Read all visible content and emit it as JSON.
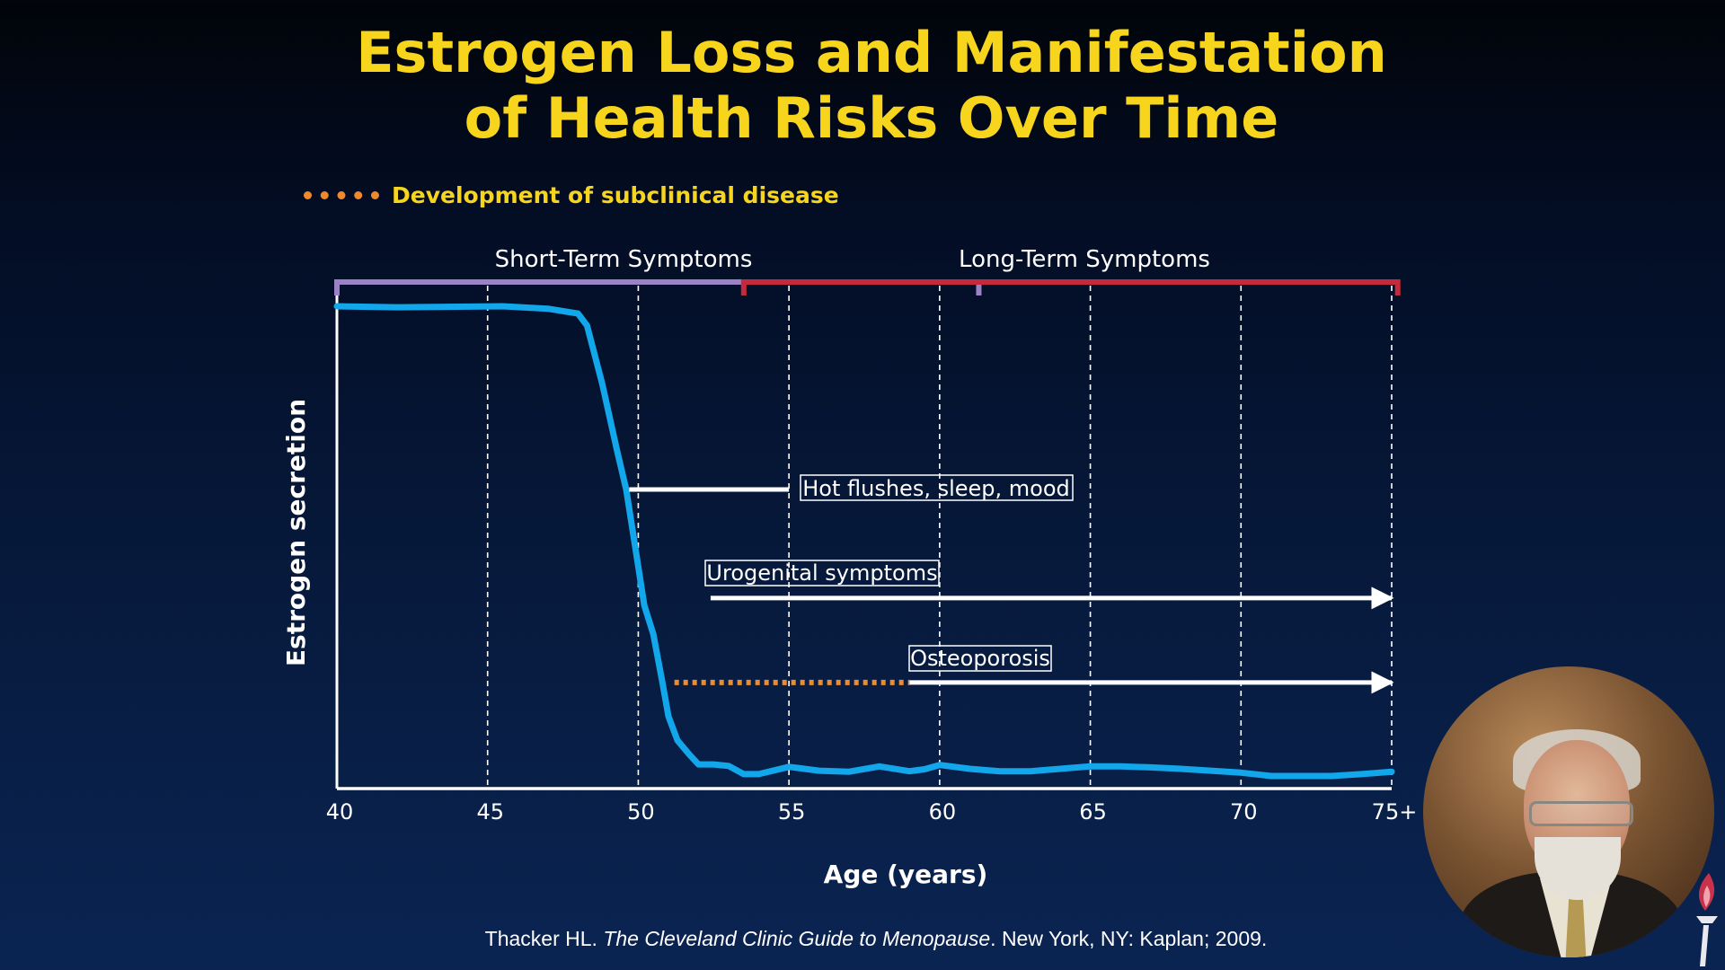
{
  "title_lines": [
    "Estrogen Loss and Manifestation",
    "of Health Risks Over Time"
  ],
  "legend": {
    "label": "Development of subclinical disease",
    "color": "#ef8a2c"
  },
  "colors": {
    "title": "#f7d51d",
    "curve": "#12a7ea",
    "short_term_bracket": "#9b82c7",
    "long_term_bracket": "#c52a3c",
    "subclinical": "#ef8a2c"
  },
  "chart_data": {
    "type": "line",
    "xlabel": "Age (years)",
    "ylabel": "Estrogen secretion",
    "xlim": [
      40,
      75
    ],
    "x_ticks": [
      40,
      45,
      50,
      55,
      60,
      65,
      70,
      75
    ],
    "x_tick_labels": [
      "40",
      "45",
      "50",
      "55",
      "60",
      "65",
      "70",
      "75+"
    ],
    "y_ticks_shown": false,
    "ylim": [
      0,
      100
    ],
    "grid": "vertical dashed at each x tick",
    "series": [
      {
        "x": [
          40,
          42,
          44,
          45.5,
          47,
          48,
          48.3,
          48.8,
          49.3,
          49.6,
          49.9,
          50.2,
          50.5,
          50.8,
          51,
          51.3,
          51.7,
          52,
          52.5,
          53,
          53.5,
          54,
          55,
          56,
          57,
          58,
          59,
          59.5,
          60,
          61,
          62,
          63,
          64,
          65,
          66,
          67,
          68,
          69,
          70,
          71,
          72,
          73,
          74,
          75
        ],
        "y": [
          100,
          99.8,
          99.9,
          100,
          99.5,
          98.5,
          96,
          84,
          70,
          62,
          50,
          38,
          32,
          22,
          15,
          10,
          7,
          5,
          5,
          4.7,
          3,
          3,
          4.5,
          3.7,
          3.5,
          4.6,
          3.6,
          4,
          4.9,
          4.1,
          3.6,
          3.6,
          4.1,
          4.6,
          4.6,
          4.4,
          4.1,
          3.7,
          3.3,
          2.6,
          2.6,
          2.6,
          3,
          3.5
        ]
      }
    ],
    "top_brackets": [
      {
        "label": "Short-Term Symptoms",
        "x_start": 40,
        "x_end": 61.3
      },
      {
        "label": "Long-Term Symptoms",
        "x_start": 53.5,
        "x_end": 75.2
      }
    ],
    "annotations": [
      {
        "label": "Hot flushes, sleep, mood",
        "x_start": 49.7,
        "x_end": 55,
        "y": 62,
        "arrow": false
      },
      {
        "label": "Urogenital symptoms",
        "x_start": 52.4,
        "x_end": 75,
        "y": 39.5,
        "arrow": true
      },
      {
        "label": "Osteoporosis",
        "subclinical_x_start": 51.2,
        "x_start": 59,
        "x_end": 75,
        "y": 22,
        "arrow": true
      }
    ]
  },
  "citation": {
    "prefix": "Thacker HL. ",
    "title": "The Cleveland Clinic Guide to Menopause",
    "suffix": ". New York, NY: Kaplan; 2009."
  }
}
